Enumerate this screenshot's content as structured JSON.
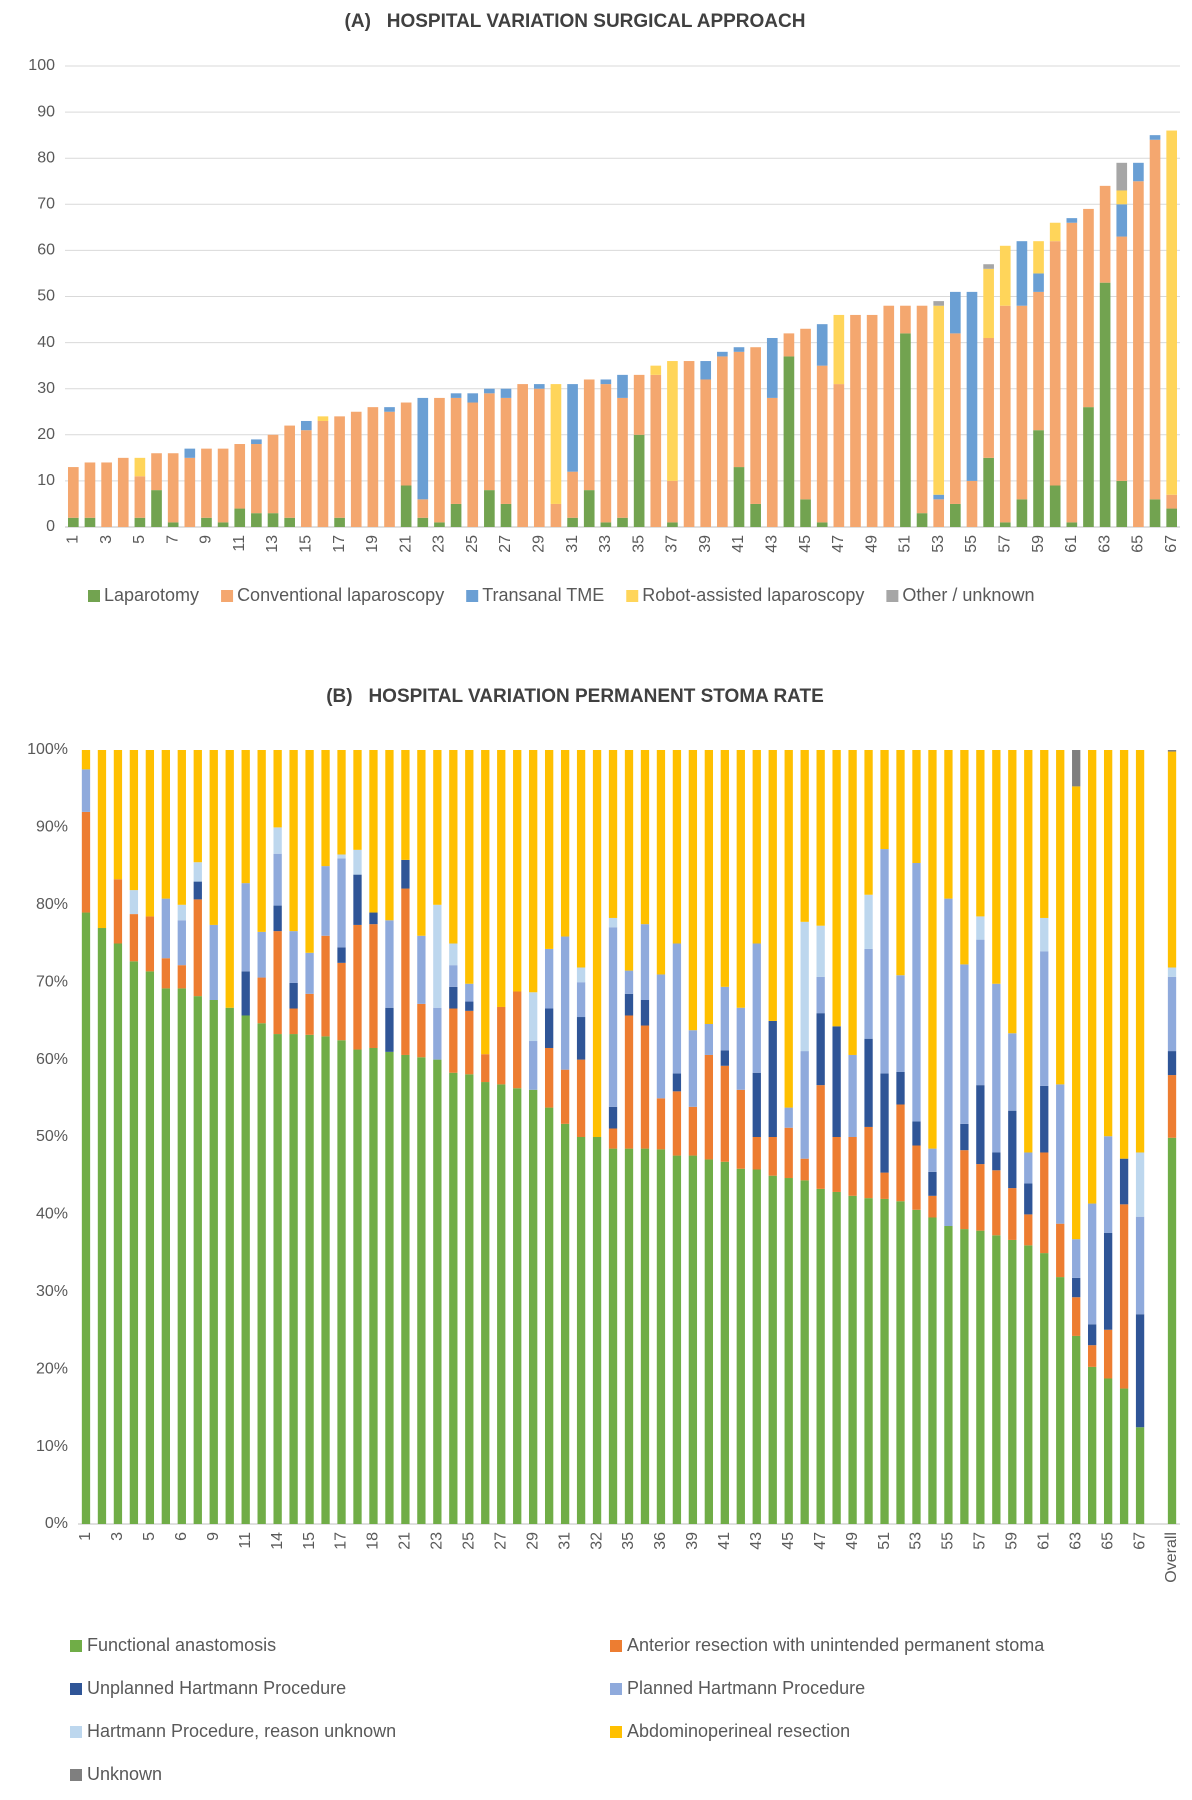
{
  "chart_data": [
    {
      "type": "stacked_bar",
      "title": "(A)   HOSPITAL VARIATION SURGICAL APPROACH",
      "categories": [
        "1",
        null,
        "3",
        null,
        "5",
        null,
        "7",
        null,
        "9",
        null,
        "11",
        null,
        "13",
        null,
        "15",
        null,
        "17",
        null,
        "19",
        null,
        "21",
        null,
        "23",
        null,
        "25",
        null,
        "27",
        null,
        "29",
        null,
        "31",
        null,
        "33",
        null,
        "35",
        null,
        "37",
        null,
        "39",
        null,
        "41",
        null,
        "43",
        null,
        "45",
        null,
        "47",
        null,
        "49",
        null,
        "51",
        null,
        "53",
        null,
        "55",
        null,
        "57",
        null,
        "59",
        null,
        "61",
        null,
        "63",
        null,
        "65",
        null,
        "67"
      ],
      "series": [
        {
          "name": "Laparotomy",
          "color": "#72a350",
          "values": [
            2,
            2,
            0,
            0,
            2,
            8,
            1,
            0,
            2,
            1,
            4,
            3,
            3,
            2,
            0,
            0,
            2,
            0,
            0,
            0,
            9,
            2,
            1,
            5,
            0,
            8,
            5,
            0,
            0,
            0,
            2,
            8,
            1,
            2,
            20,
            0,
            1,
            0,
            0,
            0,
            13,
            5,
            0,
            37,
            6,
            1,
            0,
            0,
            0,
            0,
            42,
            3,
            0,
            5,
            0,
            15,
            1,
            6,
            21,
            9,
            1,
            26,
            53,
            10,
            0,
            6,
            4
          ]
        },
        {
          "name": "Conventional laparoscopy",
          "color": "#f4a76f",
          "values": [
            11,
            12,
            14,
            15,
            9,
            8,
            15,
            15,
            15,
            16,
            14,
            15,
            17,
            20,
            21,
            23,
            22,
            25,
            26,
            25,
            18,
            4,
            27,
            23,
            27,
            21,
            23,
            31,
            30,
            5,
            10,
            24,
            30,
            26,
            13,
            33,
            9,
            36,
            32,
            37,
            25,
            34,
            28,
            5,
            37,
            34,
            31,
            46,
            46,
            48,
            6,
            45,
            6,
            37,
            10,
            26,
            47,
            42,
            30,
            53,
            65,
            43,
            21,
            53,
            75,
            78,
            3
          ]
        },
        {
          "name": "Transanal TME",
          "color": "#6a9fd4",
          "values": [
            0,
            0,
            0,
            0,
            0,
            0,
            0,
            2,
            0,
            0,
            0,
            1,
            0,
            0,
            2,
            0,
            0,
            0,
            0,
            1,
            0,
            22,
            0,
            1,
            2,
            1,
            2,
            0,
            1,
            0,
            19,
            0,
            1,
            5,
            0,
            0,
            0,
            0,
            4,
            1,
            1,
            0,
            13,
            0,
            0,
            9,
            0,
            0,
            0,
            0,
            0,
            0,
            1,
            9,
            41,
            0,
            0,
            14,
            4,
            0,
            1,
            0,
            0,
            7,
            4,
            1,
            0
          ]
        },
        {
          "name": "Robot-assisted laparoscopy",
          "color": "#ffd55a",
          "values": [
            0,
            0,
            0,
            0,
            4,
            0,
            0,
            0,
            0,
            0,
            0,
            0,
            0,
            0,
            0,
            1,
            0,
            0,
            0,
            0,
            0,
            0,
            0,
            0,
            0,
            0,
            0,
            0,
            0,
            26,
            0,
            0,
            0,
            0,
            0,
            2,
            26,
            0,
            0,
            0,
            0,
            0,
            0,
            0,
            0,
            0,
            15,
            0,
            0,
            0,
            0,
            0,
            41,
            0,
            0,
            15,
            13,
            0,
            7,
            4,
            0,
            0,
            0,
            3,
            0,
            0,
            79
          ]
        },
        {
          "name": "Other / unknown",
          "color": "#a6a6a6",
          "values": [
            0,
            0,
            0,
            0,
            0,
            0,
            0,
            0,
            0,
            0,
            0,
            0,
            0,
            0,
            0,
            0,
            0,
            0,
            0,
            0,
            0,
            0,
            0,
            0,
            0,
            0,
            0,
            0,
            0,
            0,
            0,
            0,
            0,
            0,
            0,
            0,
            0,
            0,
            0,
            0,
            0,
            0,
            0,
            0,
            0,
            0,
            0,
            0,
            0,
            0,
            0,
            0,
            1,
            0,
            0,
            1,
            0,
            0,
            0,
            0,
            0,
            0,
            0,
            6,
            0,
            0,
            0
          ]
        }
      ],
      "ylim": [
        0,
        100
      ],
      "yticks": [
        0,
        10,
        20,
        30,
        40,
        50,
        60,
        70,
        80,
        90,
        100
      ],
      "grid": true,
      "legend": "bottom"
    },
    {
      "type": "stacked_bar",
      "title": "(B)   HOSPITAL VARIATION PERMANENT STOMA RATE",
      "categories": [
        "1",
        null,
        "3",
        null,
        "5",
        null,
        "6",
        null,
        "9",
        null,
        "11",
        null,
        "14",
        null,
        "15",
        null,
        "17",
        null,
        "18",
        null,
        "21",
        null,
        "23",
        null,
        "25",
        null,
        "27",
        null,
        "29",
        null,
        "31",
        null,
        "32",
        null,
        "35",
        null,
        "36",
        null,
        "39",
        null,
        "41",
        null,
        "43",
        null,
        "45",
        null,
        "47",
        null,
        "49",
        null,
        "51",
        null,
        "53",
        null,
        "55",
        null,
        "57",
        null,
        "59",
        null,
        "61",
        null,
        "63",
        null,
        "65",
        null,
        "67",
        null,
        "Overall"
      ],
      "series": [
        {
          "name": "Functional anastomosis",
          "color": "#70ad47",
          "values": [
            79,
            77,
            75,
            72.7,
            71.4,
            69.2,
            69.2,
            68.2,
            67.7,
            66.7,
            65.7,
            64.7,
            63.3,
            63.3,
            63.2,
            63,
            62.5,
            61.3,
            61.5,
            61,
            60.6,
            60.3,
            60,
            58.3,
            58.1,
            57.1,
            56.8,
            56.3,
            56.1,
            53.8,
            51.7,
            50,
            50,
            48.5,
            48.5,
            48.5,
            48.4,
            47.6,
            47.6,
            47.1,
            46.8,
            45.9,
            45.8,
            45,
            44.7,
            44.4,
            43.3,
            42.9,
            42.4,
            42.1,
            42,
            41.7,
            40.6,
            39.6,
            38.5,
            38.1,
            37.9,
            37.3,
            36.7,
            36,
            35,
            31.9,
            24.3,
            20.3,
            18.8,
            17.5,
            12.5,
            null,
            49.9
          ]
        },
        {
          "name": "Anterior resection with unintended permanent stoma",
          "color": "#ed7d31",
          "values": [
            13,
            0,
            8.3,
            6.1,
            7.1,
            3.9,
            3,
            12.5,
            0,
            0,
            0,
            5.9,
            13.3,
            3.3,
            5.3,
            13,
            10,
            16.1,
            16,
            0,
            21.5,
            6.9,
            0,
            8.3,
            8.2,
            3.6,
            10,
            12.5,
            0,
            7.7,
            7,
            10,
            0,
            2.6,
            17.2,
            15.9,
            6.6,
            8.3,
            6.3,
            13.5,
            12.4,
            10.2,
            4.2,
            5,
            6.5,
            2.8,
            13.4,
            7.1,
            7.6,
            9.2,
            3.4,
            12.5,
            8.3,
            2.8,
            0,
            10.2,
            8.6,
            8.4,
            6.7,
            4,
            13,
            6.9,
            5,
            2.8,
            6.3,
            23.8,
            0,
            null,
            8.1
          ]
        },
        {
          "name": "Unplanned Hartmann Procedure",
          "color": "#2f5597",
          "values": [
            0,
            0,
            0,
            0,
            0,
            0,
            0,
            2.3,
            0,
            0,
            5.7,
            0,
            3.3,
            3.3,
            0,
            0,
            2,
            6.5,
            1.5,
            5.7,
            3.7,
            0,
            0,
            2.8,
            1.2,
            0,
            0,
            0,
            0,
            5.1,
            0,
            5.5,
            0,
            2.8,
            2.8,
            3.3,
            0,
            2.3,
            0,
            0,
            2,
            0,
            8.3,
            15,
            0,
            0,
            9.3,
            14.3,
            0,
            11.4,
            12.8,
            4.2,
            3.1,
            3.1,
            0,
            3.4,
            10.2,
            2.3,
            10,
            4,
            8.6,
            0,
            2.5,
            2.7,
            12.5,
            5.9,
            14.6,
            null,
            3.1
          ]
        },
        {
          "name": "Planned Hartmann Procedure",
          "color": "#8faadc",
          "values": [
            5.5,
            0,
            0,
            0,
            0,
            7.7,
            5.8,
            0,
            9.7,
            0,
            11.4,
            5.9,
            6.7,
            6.7,
            5.3,
            9,
            11.5,
            0,
            0,
            11.3,
            0,
            8.8,
            6.7,
            2.8,
            2.3,
            0,
            0,
            0,
            6.3,
            7.7,
            17.2,
            4.5,
            0,
            23.2,
            3,
            9.8,
            16,
            16.8,
            9.9,
            4,
            8.2,
            10.6,
            16.7,
            0,
            2.6,
            13.9,
            4.7,
            0,
            10.6,
            11.6,
            29,
            12.5,
            33.4,
            3,
            42.3,
            20.6,
            18.8,
            21.8,
            10,
            4,
            17.4,
            18,
            5,
            15.6,
            12.5,
            0,
            12.6,
            null,
            9.6
          ]
        },
        {
          "name": "Hartmann Procedure, reason unknown",
          "color": "#bdd7ee",
          "values": [
            0,
            0,
            0,
            3.1,
            0,
            0,
            2,
            2.5,
            0,
            0,
            0,
            0,
            3.4,
            0,
            0,
            0,
            0.5,
            3.2,
            0,
            0,
            0,
            0,
            13.3,
            2.8,
            0,
            0,
            0,
            0,
            6.3,
            0,
            0,
            1.9,
            0,
            1.2,
            0,
            0,
            0,
            0,
            0,
            0,
            0,
            0,
            0,
            0,
            0,
            16.7,
            6.6,
            0,
            0,
            7,
            0,
            0,
            0,
            0,
            0,
            0,
            3,
            0,
            0,
            0,
            4.3,
            0,
            0,
            0,
            0,
            0,
            8.3,
            null,
            1.2
          ]
        },
        {
          "name": "Abdominoperineal resection",
          "color": "#ffc000",
          "values": [
            2.5,
            23,
            16.7,
            18.1,
            21.5,
            19.2,
            20,
            14.5,
            22.6,
            33.3,
            17.2,
            23.5,
            10,
            23.4,
            26.2,
            15,
            13.5,
            12.9,
            21,
            22,
            14.2,
            24,
            20,
            25,
            30.2,
            39.3,
            33.2,
            31.2,
            31.3,
            25.7,
            24.1,
            28.1,
            50,
            21.7,
            28.5,
            22.5,
            29,
            25,
            36.2,
            35.4,
            30.6,
            33.3,
            25,
            35,
            46.2,
            22.2,
            22.7,
            35.7,
            39.4,
            18.7,
            12.8,
            29.1,
            14.6,
            51.5,
            19.2,
            27.7,
            21.5,
            30.2,
            36.6,
            52,
            21.7,
            43.2,
            58.5,
            58.6,
            49.9,
            52.8,
            52,
            null,
            27.9
          ]
        },
        {
          "name": "Unknown",
          "color": "#7f7f7f",
          "values": [
            0,
            0,
            0,
            0,
            0,
            0,
            0,
            0,
            0,
            0,
            0,
            0,
            0,
            0,
            0,
            0,
            0,
            0,
            0,
            0,
            0,
            0,
            0,
            0,
            0,
            0,
            0,
            0,
            0,
            0,
            0,
            0,
            0,
            0,
            0,
            0,
            0,
            0,
            0,
            0,
            0,
            0,
            0,
            0,
            0,
            0,
            0,
            0,
            0,
            0,
            0,
            0,
            0,
            0,
            0,
            0,
            0,
            0,
            0,
            0,
            0,
            0,
            4.7,
            0,
            0,
            0,
            0,
            null,
            0.2
          ]
        }
      ],
      "ylim": [
        0,
        100
      ],
      "yticks": [
        {
          "value": 0,
          "label": "0%"
        },
        {
          "value": 10,
          "label": "10%"
        },
        {
          "value": 20,
          "label": "20%"
        },
        {
          "value": 30,
          "label": "30%"
        },
        {
          "value": 40,
          "label": "40%"
        },
        {
          "value": 50,
          "label": "50%"
        },
        {
          "value": 60,
          "label": "60%"
        },
        {
          "value": 70,
          "label": "70%"
        },
        {
          "value": 80,
          "label": "80%"
        },
        {
          "value": 90,
          "label": "90%"
        },
        {
          "value": 100,
          "label": "100%"
        }
      ],
      "grid": false,
      "legend": "bottom"
    }
  ]
}
